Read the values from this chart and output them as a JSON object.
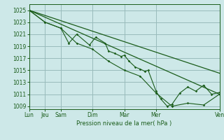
{
  "background_color": "#cde8e8",
  "grid_color": "#99bbbb",
  "line_color": "#1a5c1a",
  "ylim": [
    1008.5,
    1026.0
  ],
  "yticks": [
    1009,
    1011,
    1013,
    1015,
    1017,
    1019,
    1021,
    1023,
    1025
  ],
  "xlabel": "Pression niveau de la mer( hPa )",
  "xtick_pos": [
    0,
    1,
    2,
    4,
    6,
    8,
    12
  ],
  "xtick_labels": [
    "Lun",
    "Jeu",
    "Sam",
    "Dim",
    "Mar",
    "Mer",
    "Ven"
  ],
  "xlim": [
    0,
    12
  ],
  "straight_line1": [
    [
      0,
      12
    ],
    [
      1025,
      1011
    ]
  ],
  "straight_line2": [
    [
      0,
      12
    ],
    [
      1025,
      1014.5
    ]
  ],
  "series_a_x": [
    0,
    1,
    2,
    2.5,
    3,
    3.8,
    4.2,
    4.8,
    5.0,
    5.4,
    5.8,
    6.0,
    6.3,
    6.7,
    7.0,
    7.3,
    7.5,
    8.0,
    8.3,
    8.7,
    9.0,
    9.5,
    10.0,
    10.5,
    11.0,
    11.5,
    12.0
  ],
  "series_a_y": [
    1025,
    1023,
    1022,
    1019.5,
    1021.0,
    1019.2,
    1020.5,
    1019.5,
    1018.2,
    1017.8,
    1017.3,
    1017.5,
    1016.5,
    1015.5,
    1015.2,
    1014.8,
    1015.0,
    1011.5,
    1010.2,
    1009.0,
    1009.3,
    1011.2,
    1012.2,
    1011.5,
    1012.5,
    1011.0,
    1011.3
  ],
  "series_b_x": [
    0,
    1,
    2,
    3,
    4,
    5,
    6,
    7,
    8,
    9,
    10,
    11,
    12
  ],
  "series_b_y": [
    1025,
    1023,
    1022,
    1019.5,
    1018.5,
    1016.5,
    1015.0,
    1014.0,
    1011.2,
    1009.0,
    1009.5,
    1009.2,
    1011.0
  ]
}
